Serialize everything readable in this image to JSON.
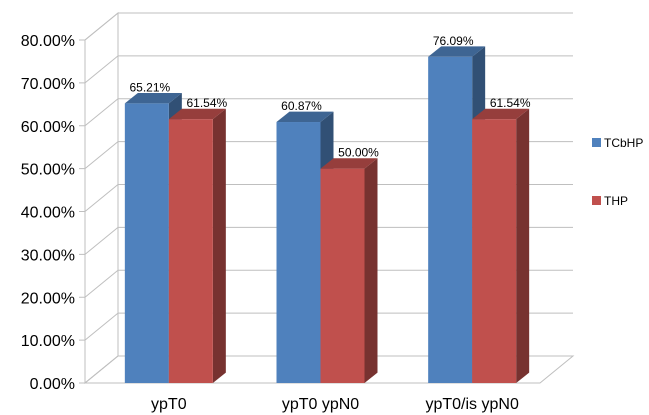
{
  "chart_data": {
    "type": "bar",
    "style": "3d-clustered",
    "categories": [
      "ypT0",
      "ypT0 ypN0",
      "ypT0/is ypN0"
    ],
    "series": [
      {
        "name": "TCbHP",
        "values": [
          65.21,
          60.87,
          76.09
        ],
        "labels": [
          "65.21%",
          "60.87%",
          "76.09%"
        ],
        "color": "#4f81bd"
      },
      {
        "name": "THP",
        "values": [
          61.54,
          50.0,
          61.54
        ],
        "labels": [
          "61.54%",
          "50.00%",
          "61.54%"
        ],
        "color": "#c0504d"
      }
    ],
    "yticks": [
      "0.00%",
      "10.00%",
      "20.00%",
      "30.00%",
      "40.00%",
      "50.00%",
      "60.00%",
      "70.00%",
      "80.00%"
    ],
    "ylim": [
      0,
      80
    ],
    "grid": true,
    "legend_position": "right",
    "title": "",
    "xlabel": "",
    "ylabel": ""
  }
}
